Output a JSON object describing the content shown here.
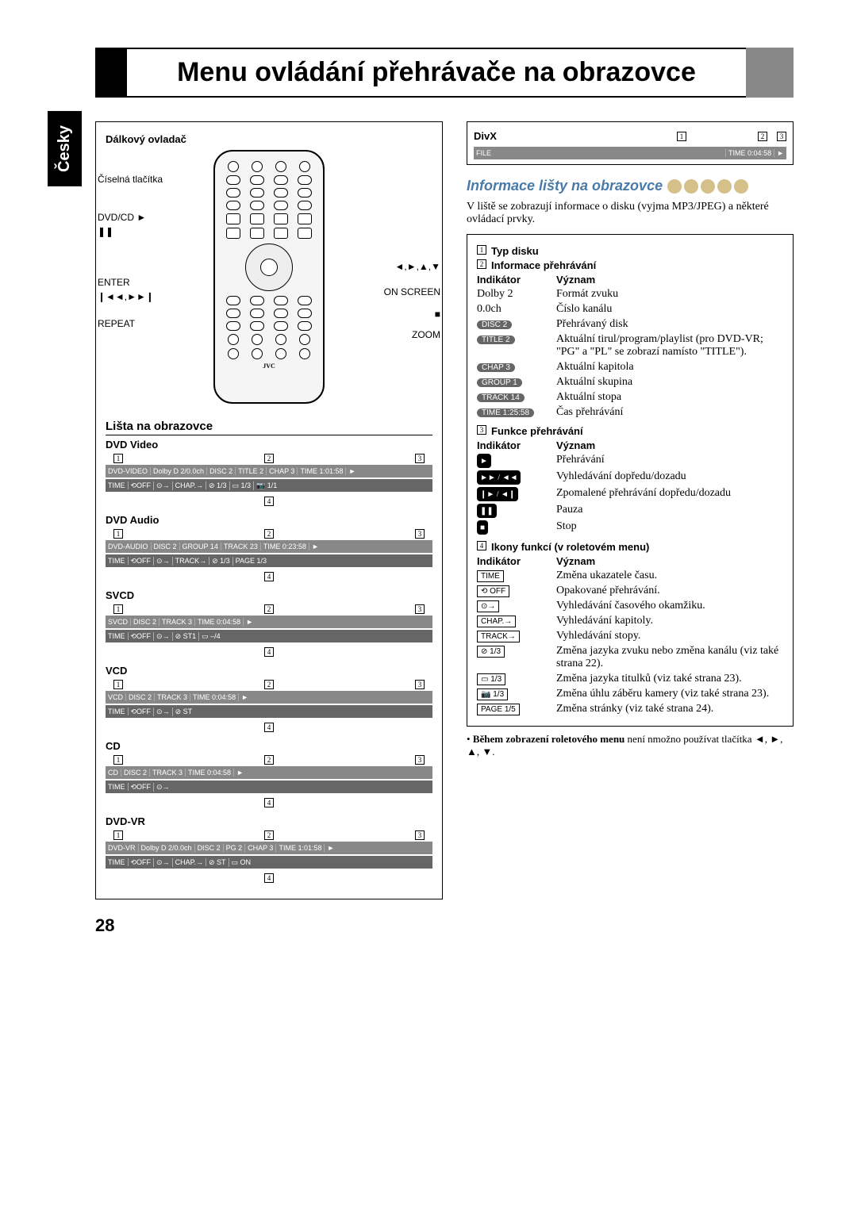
{
  "lang_tab": "Česky",
  "title": "Menu ovládání přehrávače na obrazovce",
  "page_num": "28",
  "left": {
    "remote_heading": "Dálkový ovladač",
    "remote_labels": {
      "number_buttons": "Číselná tlačítka",
      "dvdcd": "DVD/CD ►",
      "pause": "❚❚",
      "enter": "ENTER",
      "skip": "❙◄◄,►►❙",
      "repeat": "REPEAT",
      "cursor": "◄,►,▲,▼",
      "onscreen": "ON SCREEN",
      "stop": "■",
      "zoom": "ZOOM"
    },
    "section_heading": "Lišta na obrazovce",
    "formats": [
      {
        "name": "DVD Video",
        "top": [
          "DVD-VIDEO",
          "Dolby D 2/0.0ch",
          "DISC 2",
          "TITLE 2",
          "CHAP 3",
          "TIME 1:01:58",
          "►"
        ],
        "bottom": [
          "TIME",
          "⟲OFF",
          "⊙→",
          "CHAP.→",
          "⊘ 1/3",
          "▭ 1/3",
          "📷 1/1"
        ]
      },
      {
        "name": "DVD Audio",
        "top": [
          "DVD-AUDIO",
          "DISC 2",
          "GROUP 14",
          "TRACK 23",
          "TIME 0:23:58",
          "►"
        ],
        "bottom": [
          "TIME",
          "⟲OFF",
          "⊙→",
          "TRACK→",
          "⊘ 1/3",
          "PAGE 1/3"
        ]
      },
      {
        "name": "SVCD",
        "top": [
          "SVCD",
          "DISC 2",
          "TRACK 3",
          "TIME 0:04:58",
          "►"
        ],
        "bottom": [
          "TIME",
          "⟲OFF",
          "⊙→",
          "⊘ ST1",
          "▭ –/4"
        ]
      },
      {
        "name": "VCD",
        "top": [
          "VCD",
          "DISC 2",
          "TRACK 3",
          "TIME 0:04:58",
          "►"
        ],
        "bottom": [
          "TIME",
          "⟲OFF",
          "⊙→",
          "⊘ ST"
        ]
      },
      {
        "name": "CD",
        "top": [
          "CD",
          "DISC 2",
          "TRACK 3",
          "TIME 0:04:58",
          "►"
        ],
        "bottom": [
          "TIME",
          "⟲OFF",
          "⊙→"
        ]
      },
      {
        "name": "DVD-VR",
        "top": [
          "DVD-VR",
          "Dolby D 2/0.0ch",
          "DISC 2",
          "PG 2",
          "CHAP 3",
          "TIME 1:01:58",
          "►"
        ],
        "bottom": [
          "TIME",
          "⟲OFF",
          "⊙→",
          "CHAP.→",
          "⊘ ST",
          "▭ ON"
        ]
      }
    ]
  },
  "right": {
    "divx_heading": "DivX",
    "divx_top": [
      "FILE",
      "TIME 0:04:58",
      "►"
    ],
    "section_heading": "Informace lišty na obrazovce",
    "intro": "V liště se zobrazují informace o disku (vyjma MP3/JPEG) a některé ovládací prvky.",
    "block1_h": "Typ disku",
    "block2_h": "Informace přehrávání",
    "col_ind": "Indikátor",
    "col_mean": "Význam",
    "block2_rows": [
      {
        "ind": "Dolby 2",
        "type": "text",
        "mean": "Formát zvuku"
      },
      {
        "ind": "0.0ch",
        "type": "text",
        "mean": "Číslo kanálu"
      },
      {
        "ind": "DISC 2",
        "type": "badge",
        "mean": "Přehrávaný disk"
      },
      {
        "ind": "TITLE 2",
        "type": "badge",
        "mean": "Aktuální tirul/program/playlist (pro DVD-VR; \"PG\" a \"PL\" se zobrazí namísto \"TITLE\")."
      },
      {
        "ind": "CHAP 3",
        "type": "badge",
        "mean": "Aktuální kapitola"
      },
      {
        "ind": "GROUP 1",
        "type": "badge",
        "mean": "Aktuální skupina"
      },
      {
        "ind": "TRACK 14",
        "type": "badge",
        "mean": "Aktuální stopa"
      },
      {
        "ind": "TIME 1:25:58",
        "type": "badge",
        "mean": "Čas přehrávání"
      }
    ],
    "block3_h": "Funkce přehrávání",
    "block3_rows": [
      {
        "icon": "►",
        "mean": "Přehrávání"
      },
      {
        "icon": "►► / ◄◄",
        "mean": "Vyhledávání dopředu/dozadu"
      },
      {
        "icon": "❙► / ◄❙",
        "mean": "Zpomalené přehrávání dopředu/dozadu"
      },
      {
        "icon": "❚❚",
        "mean": "Pauza"
      },
      {
        "icon": "■",
        "mean": "Stop"
      }
    ],
    "block4_h": "Ikony funkcí (v roletovém menu)",
    "block4_rows": [
      {
        "icon": "TIME",
        "mean": "Změna ukazatele času."
      },
      {
        "icon": "⟲ OFF",
        "mean": "Opakované přehrávání."
      },
      {
        "icon": "⊙→",
        "mean": "Vyhledávání časového okamžiku."
      },
      {
        "icon": "CHAP.→",
        "mean": "Vyhledávání kapitoly."
      },
      {
        "icon": "TRACK→",
        "mean": "Vyhledávání stopy."
      },
      {
        "icon": "⊘ 1/3",
        "mean": "Změna jazyka zvuku nebo změna kanálu (viz také strana 22)."
      },
      {
        "icon": "▭ 1/3",
        "mean": "Změna jazyka titulků (viz také strana 23)."
      },
      {
        "icon": "📷 1/3",
        "mean": "Změna úhlu záběru kamery (viz také strana 23)."
      },
      {
        "icon": "PAGE 1/5",
        "mean": "Změna stránky (viz také strana 24)."
      }
    ],
    "note_bold": "Během zobrazení roletového menu",
    "note_rest": " není nmožno používat tlačítka ◄, ►, ▲, ▼."
  }
}
